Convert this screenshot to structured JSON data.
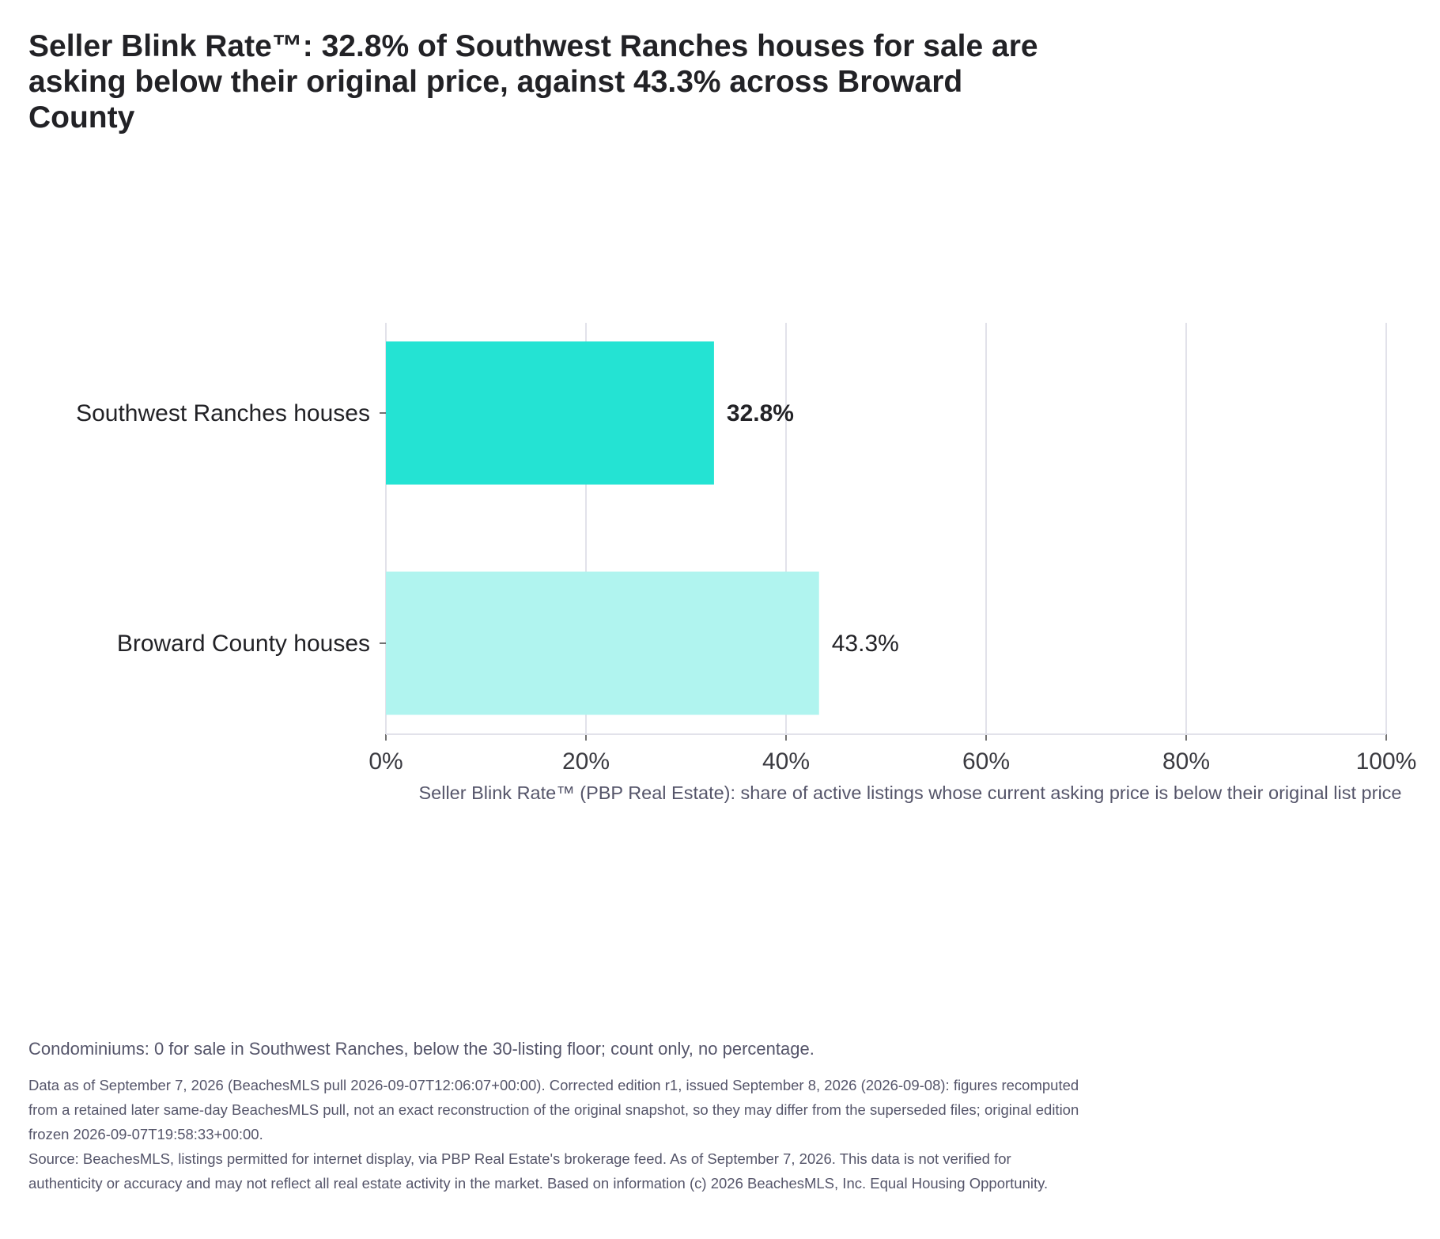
{
  "title": "Seller Blink Rate™: 32.8% of Southwest Ranches houses for sale are asking below their original price, against 43.3% across Broward County",
  "colors": {
    "highlight_bar": "#24e3d3",
    "comparison_bar": "#b0f4ef",
    "gridline": "#e2e2ea",
    "text": "#222226",
    "muted_text": "#55556a"
  },
  "chart_data": {
    "type": "bar",
    "orientation": "horizontal",
    "categories": [
      "Southwest Ranches houses",
      "Broward County houses"
    ],
    "values": [
      32.8,
      43.3
    ],
    "value_labels": [
      "32.8%",
      "43.3%"
    ],
    "xlabel": "Seller Blink Rate™ (PBP Real Estate): share of active listings whose current asking price is below their original list price",
    "ylabel": "",
    "xlim": [
      0,
      100
    ],
    "x_ticks": [
      0,
      20,
      40,
      60,
      80,
      100
    ],
    "x_tick_labels": [
      "0%",
      "20%",
      "40%",
      "60%",
      "80%",
      "100%"
    ],
    "grid": "vertical",
    "legend": "none"
  },
  "note": "Condominiums: 0 for sale in Southwest Ranches, below the 30-listing floor; count only, no percentage.",
  "footer": {
    "data_line": "Data as of September 7, 2026 (BeachesMLS pull 2026-09-07T12:06:07+00:00). Corrected edition r1, issued September 8, 2026 (2026-09-08): figures recomputed from a retained later same-day BeachesMLS pull, not an exact reconstruction of the original snapshot, so they may differ from the superseded files; original edition frozen 2026-09-07T19:58:33+00:00.",
    "source_line": "Source: BeachesMLS, listings permitted for internet display, via PBP Real Estate's brokerage feed. As of September 7, 2026. This data is not verified for authenticity or accuracy and may not reflect all real estate activity in the market. Based on information (c) 2026 BeachesMLS, Inc. Equal Housing Opportunity."
  }
}
